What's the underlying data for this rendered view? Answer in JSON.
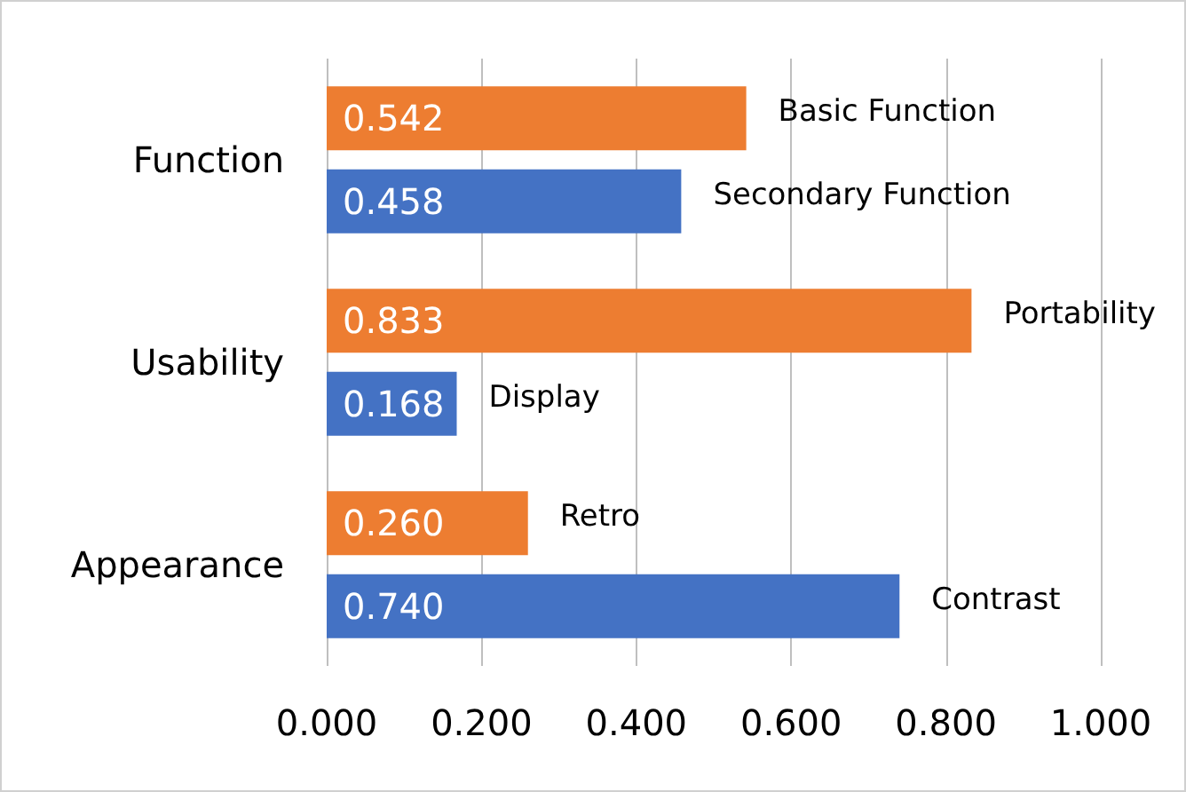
{
  "chart_data": {
    "type": "bar",
    "orientation": "horizontal",
    "categories": [
      "Function",
      "Usability",
      "Appearance"
    ],
    "series": [
      {
        "color": "#ed7d31",
        "values": [
          0.542,
          0.833,
          0.26
        ],
        "value_labels": [
          "0.542",
          "0.833",
          "0.260"
        ]
      },
      {
        "color": "#4472c4",
        "values": [
          0.458,
          0.168,
          0.74
        ],
        "value_labels": [
          "0.458",
          "0.168",
          "0.740"
        ]
      }
    ],
    "xlim": [
      0,
      1
    ],
    "xticks": [
      {
        "value": 0,
        "label": "0.000"
      },
      {
        "value": 0.2,
        "label": "0.200"
      },
      {
        "value": 0.4,
        "label": "0.400"
      },
      {
        "value": 0.6,
        "label": "0.600"
      },
      {
        "value": 0.8,
        "label": "0.800"
      },
      {
        "value": 1,
        "label": "1.000"
      }
    ],
    "grid": "x",
    "annotations": [
      "Basic Function",
      "Secondary Function",
      "Portability",
      "Display",
      "Retro",
      "Contrast"
    ]
  }
}
